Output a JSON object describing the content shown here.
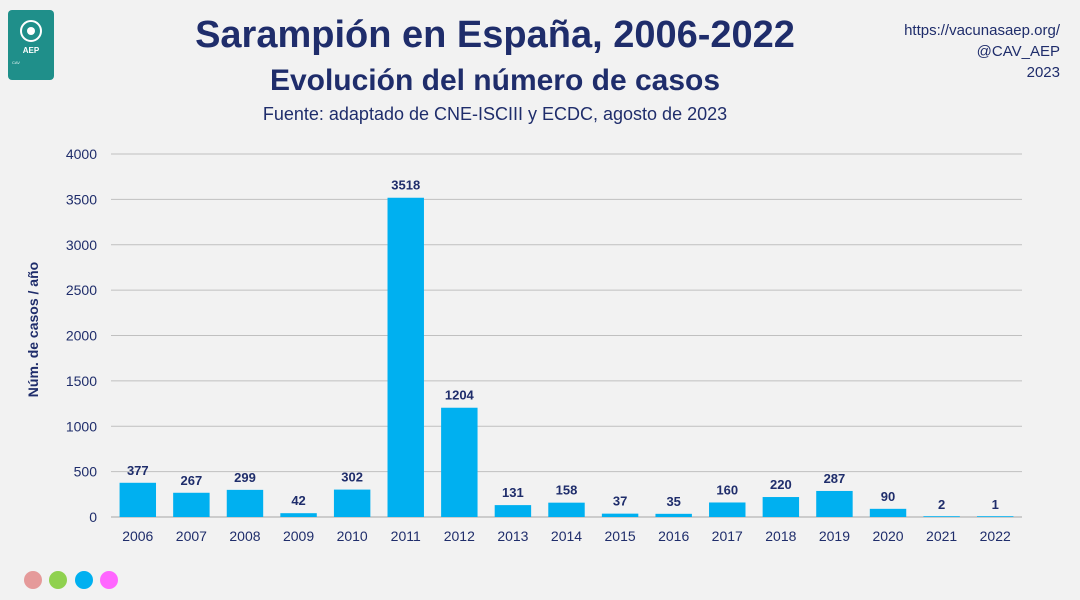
{
  "header": {
    "title": "Sarampión en España, 2006-2022",
    "subtitle": "Evolución del número de casos",
    "source": "Fuente: adaptado de CNE-ISCIII y ECDC, agosto de 2023"
  },
  "credit": {
    "line1": "https://vacunasaep.org/",
    "line2": "@CAV_AEP",
    "line3": "2023"
  },
  "logo": {
    "text": "AEP",
    "small": "CAV"
  },
  "colors": {
    "bar": "#00b0f0",
    "text_dark": "#1f2d6b",
    "grid": "#c0c0c0",
    "dots": [
      "#e59a9a",
      "#8fd14f",
      "#00b0f0",
      "#ff66ff"
    ]
  },
  "chart_data": {
    "type": "bar",
    "categories": [
      "2006",
      "2007",
      "2008",
      "2009",
      "2010",
      "2011",
      "2012",
      "2013",
      "2014",
      "2015",
      "2016",
      "2017",
      "2018",
      "2019",
      "2020",
      "2021",
      "2022"
    ],
    "values": [
      377,
      267,
      299,
      42,
      302,
      3518,
      1204,
      131,
      158,
      37,
      35,
      160,
      220,
      287,
      90,
      2,
      1
    ],
    "ylabel": "Núm. de casos / año",
    "xlabel": "",
    "ylim": [
      0,
      4000
    ],
    "yticks": [
      0,
      500,
      1000,
      1500,
      2000,
      2500,
      3000,
      3500,
      4000
    ],
    "grid": true,
    "data_labels": true
  }
}
